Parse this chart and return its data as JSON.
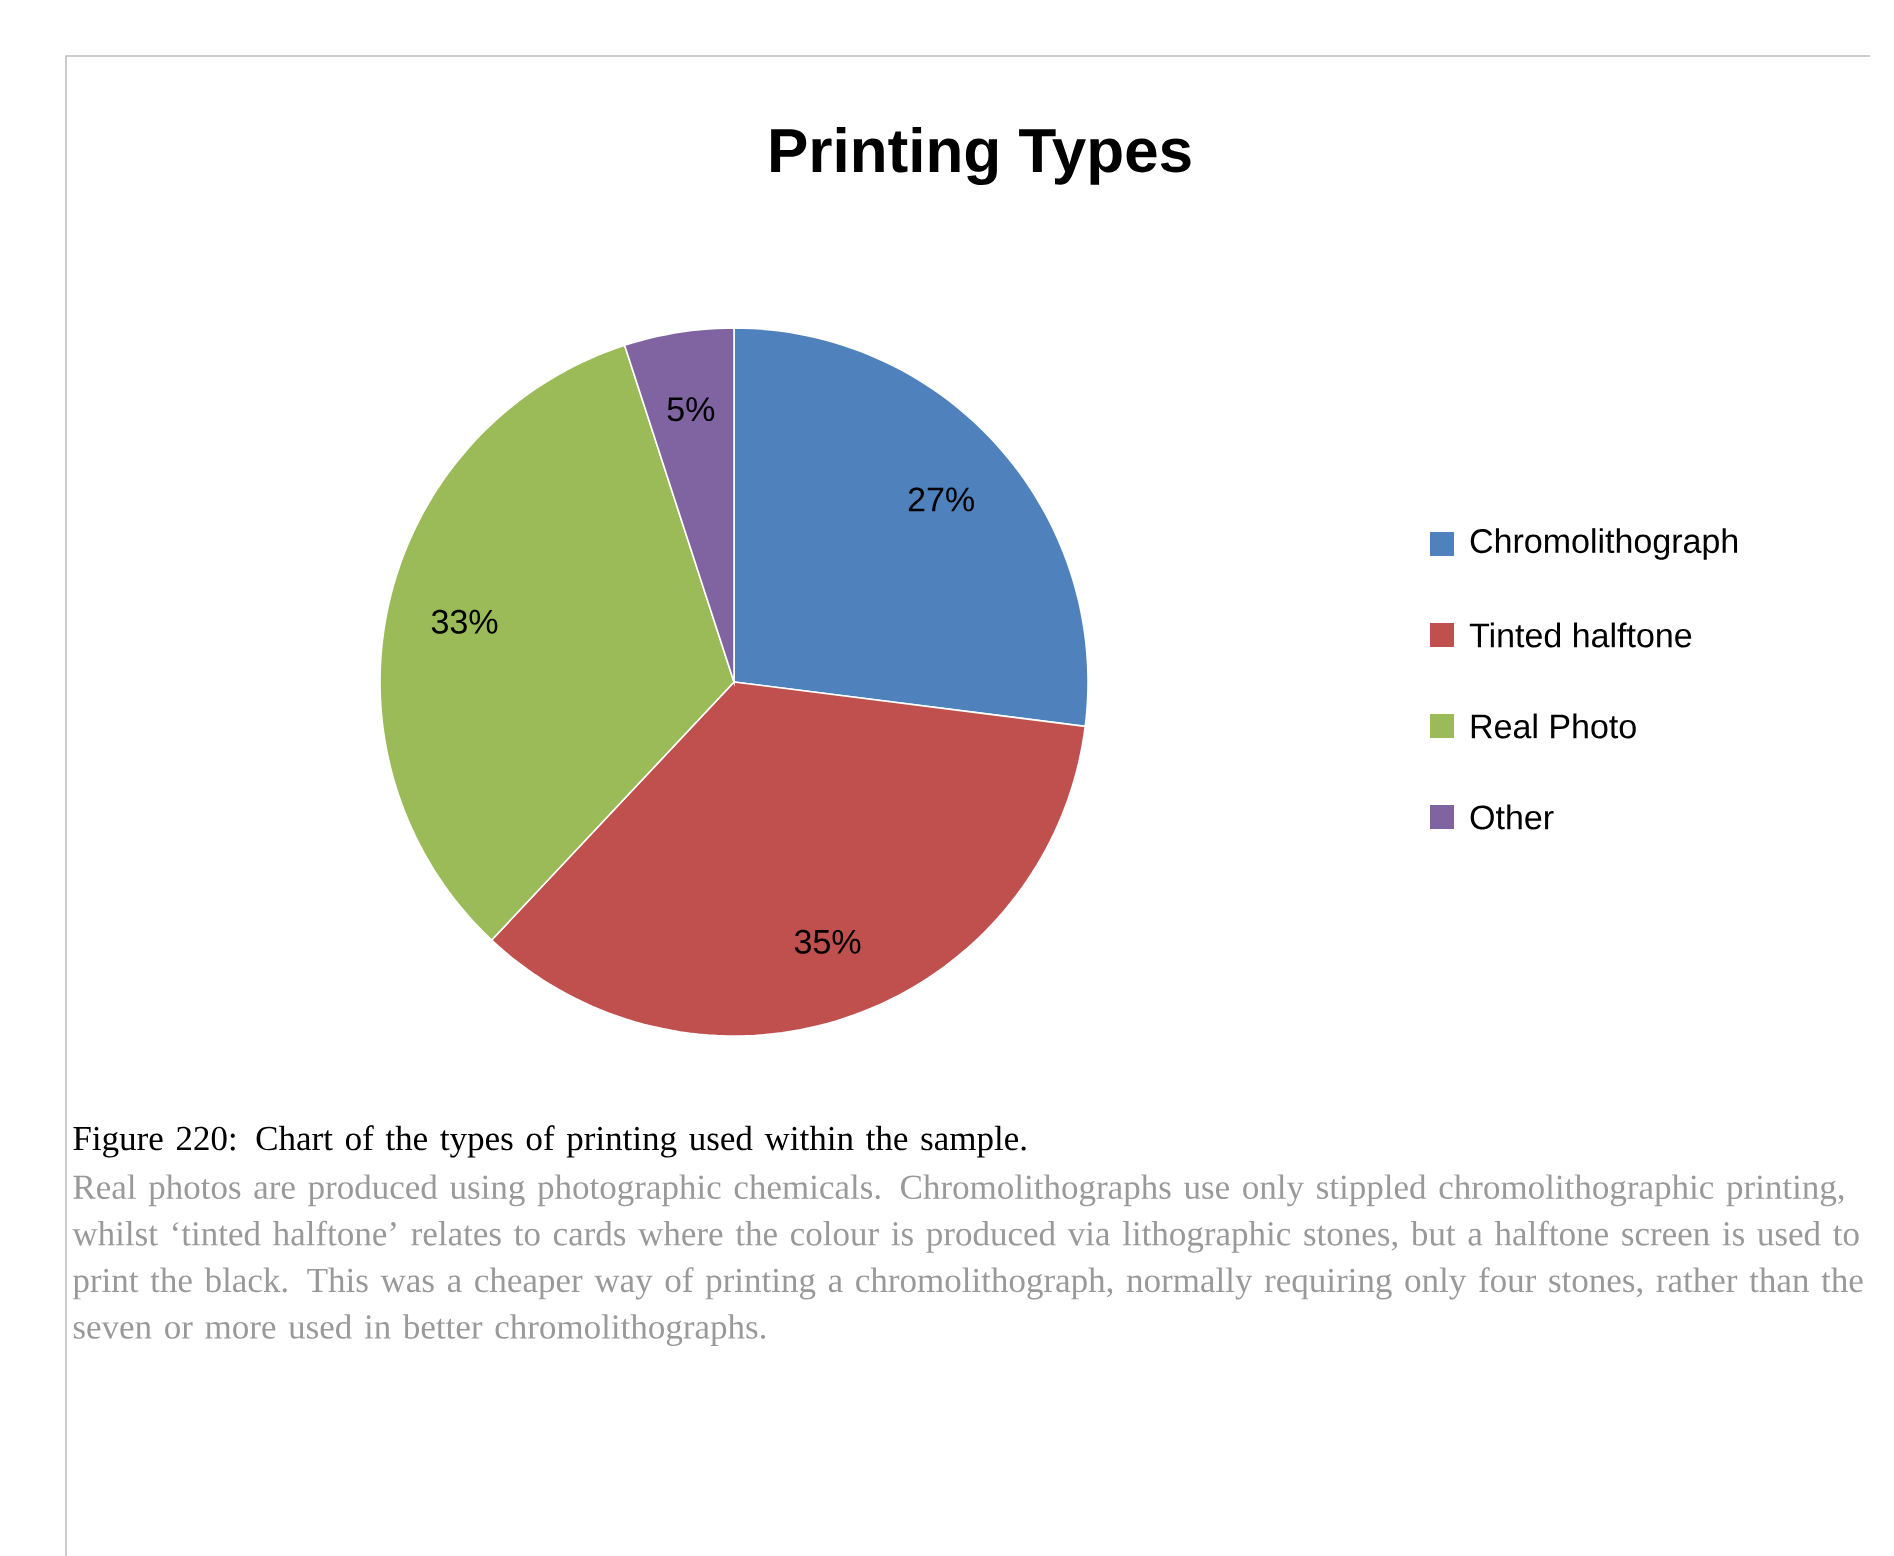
{
  "chart_data": {
    "type": "pie",
    "title": "Printing Types",
    "categories": [
      "Chromolithograph",
      "Tinted halftone",
      "Real Photo",
      "Other"
    ],
    "values": [
      27,
      35,
      33,
      5
    ],
    "value_labels": [
      "27%",
      "35%",
      "33%",
      "5%"
    ],
    "colors": [
      "#4f81bd",
      "#c0504d",
      "#9bbb59",
      "#8064a2"
    ],
    "legend": "right",
    "annotations": [
      "Figure 220: Chart of the types of printing used within the sample.",
      "Real photos are produced using photographic chemicals. Chromolithographs use only stippled chromolithographic printing, whilst ‘tinted halftone’ relates to cards where the colour is produced via lithographic stones, but a halftone screen is used to print the black. This was a cheaper way of printing a chromolithograph, normally requiring only four stones, rather than the seven or more used in better chromolithographs."
    ]
  }
}
